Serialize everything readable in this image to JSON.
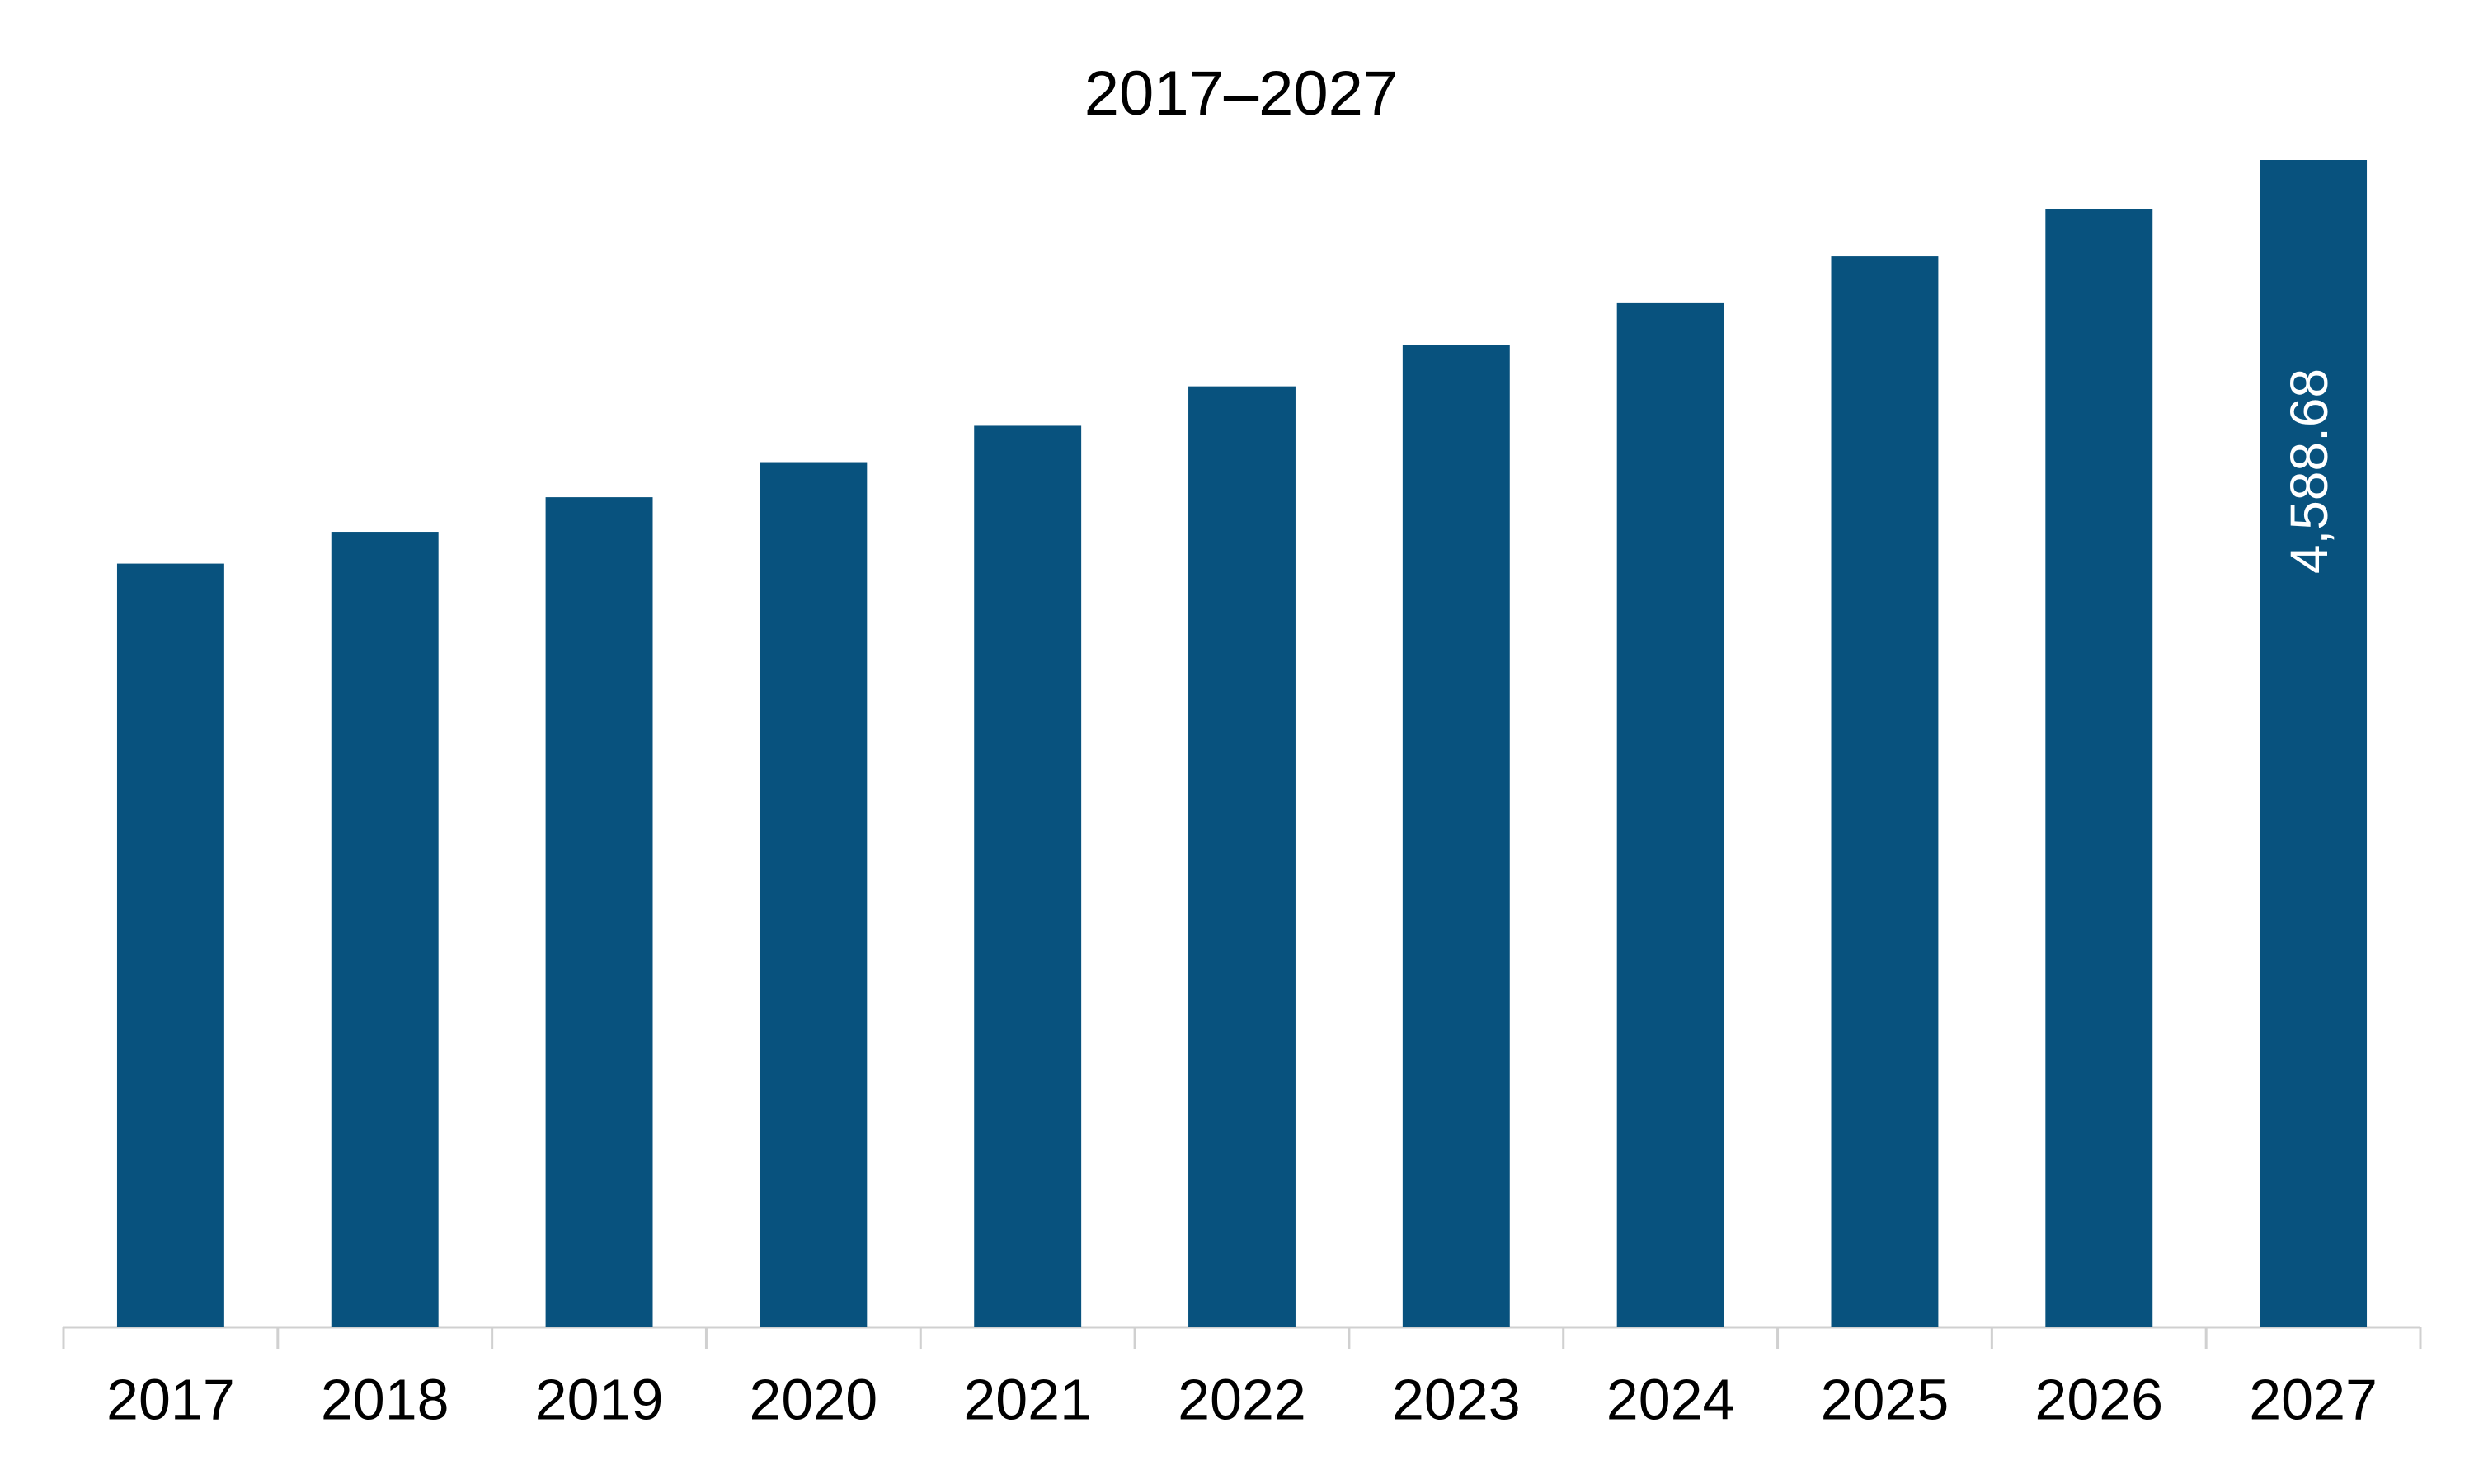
{
  "chart_data": {
    "type": "bar",
    "title": "2017–2027",
    "categories": [
      "2017",
      "2018",
      "2019",
      "2020",
      "2021",
      "2022",
      "2023",
      "2024",
      "2025",
      "2026",
      "2027"
    ],
    "values": [
      3001,
      3126,
      3262,
      3400,
      3543,
      3698,
      3860,
      4028,
      4209,
      4396,
      4588.68
    ],
    "value_labels": [
      null,
      null,
      null,
      null,
      null,
      null,
      null,
      null,
      null,
      null,
      "4,588.68"
    ],
    "color": "#08527e"
  }
}
